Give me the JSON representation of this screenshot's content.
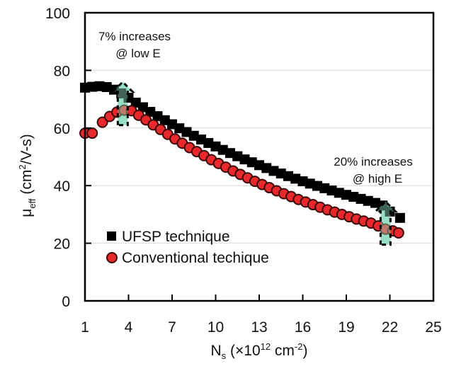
{
  "chart_data": {
    "type": "scatter",
    "title": "",
    "xlabel": {
      "main": "N",
      "sub": "s",
      "unit_prefix": " (×10",
      "unit_exp": "12",
      "unit_mid": " cm",
      "unit_exp2": "-2",
      "unit_suffix": ")"
    },
    "ylabel": {
      "main": "μ",
      "sub": "eff",
      "unit_prefix": "  (cm",
      "unit_exp": "2",
      "unit_suffix": "/V-s)"
    },
    "xlim": [
      1,
      25
    ],
    "ylim": [
      0,
      100
    ],
    "xticks": [
      "1",
      "4",
      "7",
      "10",
      "13",
      "16",
      "19",
      "22",
      "25"
    ],
    "yticks": [
      "0",
      "20",
      "40",
      "60",
      "80",
      "100"
    ],
    "grid": "horizontal",
    "legend_position": "lower-left",
    "series": [
      {
        "name": "UFSP technique",
        "marker": "square",
        "color": "#000000",
        "points": [
          [
            1.0,
            74.0
          ],
          [
            1.5,
            74.3
          ],
          [
            2.0,
            74.5
          ],
          [
            2.5,
            74.2
          ],
          [
            3.0,
            73.3
          ],
          [
            3.5,
            72.0
          ],
          [
            4.0,
            70.5
          ],
          [
            4.5,
            68.8
          ],
          [
            5.0,
            67.2
          ],
          [
            5.5,
            65.6
          ],
          [
            6.0,
            64.1
          ],
          [
            6.5,
            62.7
          ],
          [
            7.0,
            61.3
          ],
          [
            7.5,
            59.9
          ],
          [
            8.0,
            58.6
          ],
          [
            8.5,
            57.3
          ],
          [
            9.0,
            56.0
          ],
          [
            9.5,
            54.8
          ],
          [
            10.0,
            53.6
          ],
          [
            10.5,
            52.4
          ],
          [
            11.0,
            51.3
          ],
          [
            11.5,
            50.2
          ],
          [
            12.0,
            49.1
          ],
          [
            12.5,
            48.1
          ],
          [
            13.0,
            47.1
          ],
          [
            13.5,
            46.1
          ],
          [
            14.0,
            45.1
          ],
          [
            14.5,
            44.2
          ],
          [
            15.0,
            43.3
          ],
          [
            15.5,
            42.4
          ],
          [
            16.0,
            41.5
          ],
          [
            16.5,
            40.7
          ],
          [
            17.0,
            39.9
          ],
          [
            17.5,
            39.1
          ],
          [
            18.0,
            38.3
          ],
          [
            18.5,
            37.5
          ],
          [
            19.0,
            36.8
          ],
          [
            19.5,
            36.1
          ],
          [
            20.0,
            35.4
          ],
          [
            20.5,
            34.7
          ],
          [
            21.0,
            34.0
          ],
          [
            21.5,
            33.1
          ],
          [
            22.0,
            31.0
          ],
          [
            22.7,
            28.8
          ]
        ]
      },
      {
        "name": "Conventional techique",
        "marker": "circle",
        "color": "#e8282b",
        "points": [
          [
            1.0,
            58.2
          ],
          [
            1.5,
            58.2
          ],
          [
            2.2,
            62.0
          ],
          [
            2.7,
            64.0
          ],
          [
            3.2,
            65.5
          ],
          [
            3.7,
            66.2
          ],
          [
            4.2,
            66.0
          ],
          [
            4.7,
            64.4
          ],
          [
            5.2,
            62.8
          ],
          [
            5.7,
            61.1
          ],
          [
            6.2,
            59.5
          ],
          [
            6.7,
            57.8
          ],
          [
            7.2,
            56.2
          ],
          [
            7.7,
            54.7
          ],
          [
            8.2,
            53.2
          ],
          [
            8.7,
            51.8
          ],
          [
            9.2,
            50.4
          ],
          [
            9.7,
            49.0
          ],
          [
            10.2,
            47.7
          ],
          [
            10.7,
            46.4
          ],
          [
            11.2,
            45.1
          ],
          [
            11.7,
            43.9
          ],
          [
            12.2,
            42.7
          ],
          [
            12.7,
            41.5
          ],
          [
            13.2,
            40.4
          ],
          [
            13.7,
            39.3
          ],
          [
            14.2,
            38.2
          ],
          [
            14.7,
            37.2
          ],
          [
            15.2,
            36.2
          ],
          [
            15.7,
            35.2
          ],
          [
            16.2,
            34.3
          ],
          [
            16.7,
            33.4
          ],
          [
            17.2,
            32.5
          ],
          [
            17.7,
            31.6
          ],
          [
            18.2,
            30.8
          ],
          [
            18.7,
            30.0
          ],
          [
            19.2,
            29.2
          ],
          [
            19.7,
            28.4
          ],
          [
            20.2,
            27.7
          ],
          [
            20.7,
            27.0
          ],
          [
            21.2,
            26.0
          ],
          [
            21.7,
            24.9
          ],
          [
            22.2,
            24.3
          ],
          [
            22.6,
            23.6
          ]
        ]
      }
    ],
    "annotations": [
      {
        "name": "low-e",
        "lines": [
          "7% increases",
          "@ low E"
        ],
        "arrow_x": 3.6,
        "arrow_from": 61,
        "arrow_to": 76
      },
      {
        "name": "high-e",
        "lines": [
          "20% increases",
          "@ high E"
        ],
        "arrow_x": 21.7,
        "arrow_from": 19.5,
        "arrow_to": 34.5
      }
    ],
    "annotation_arrow_color": "#8fdcbf"
  }
}
